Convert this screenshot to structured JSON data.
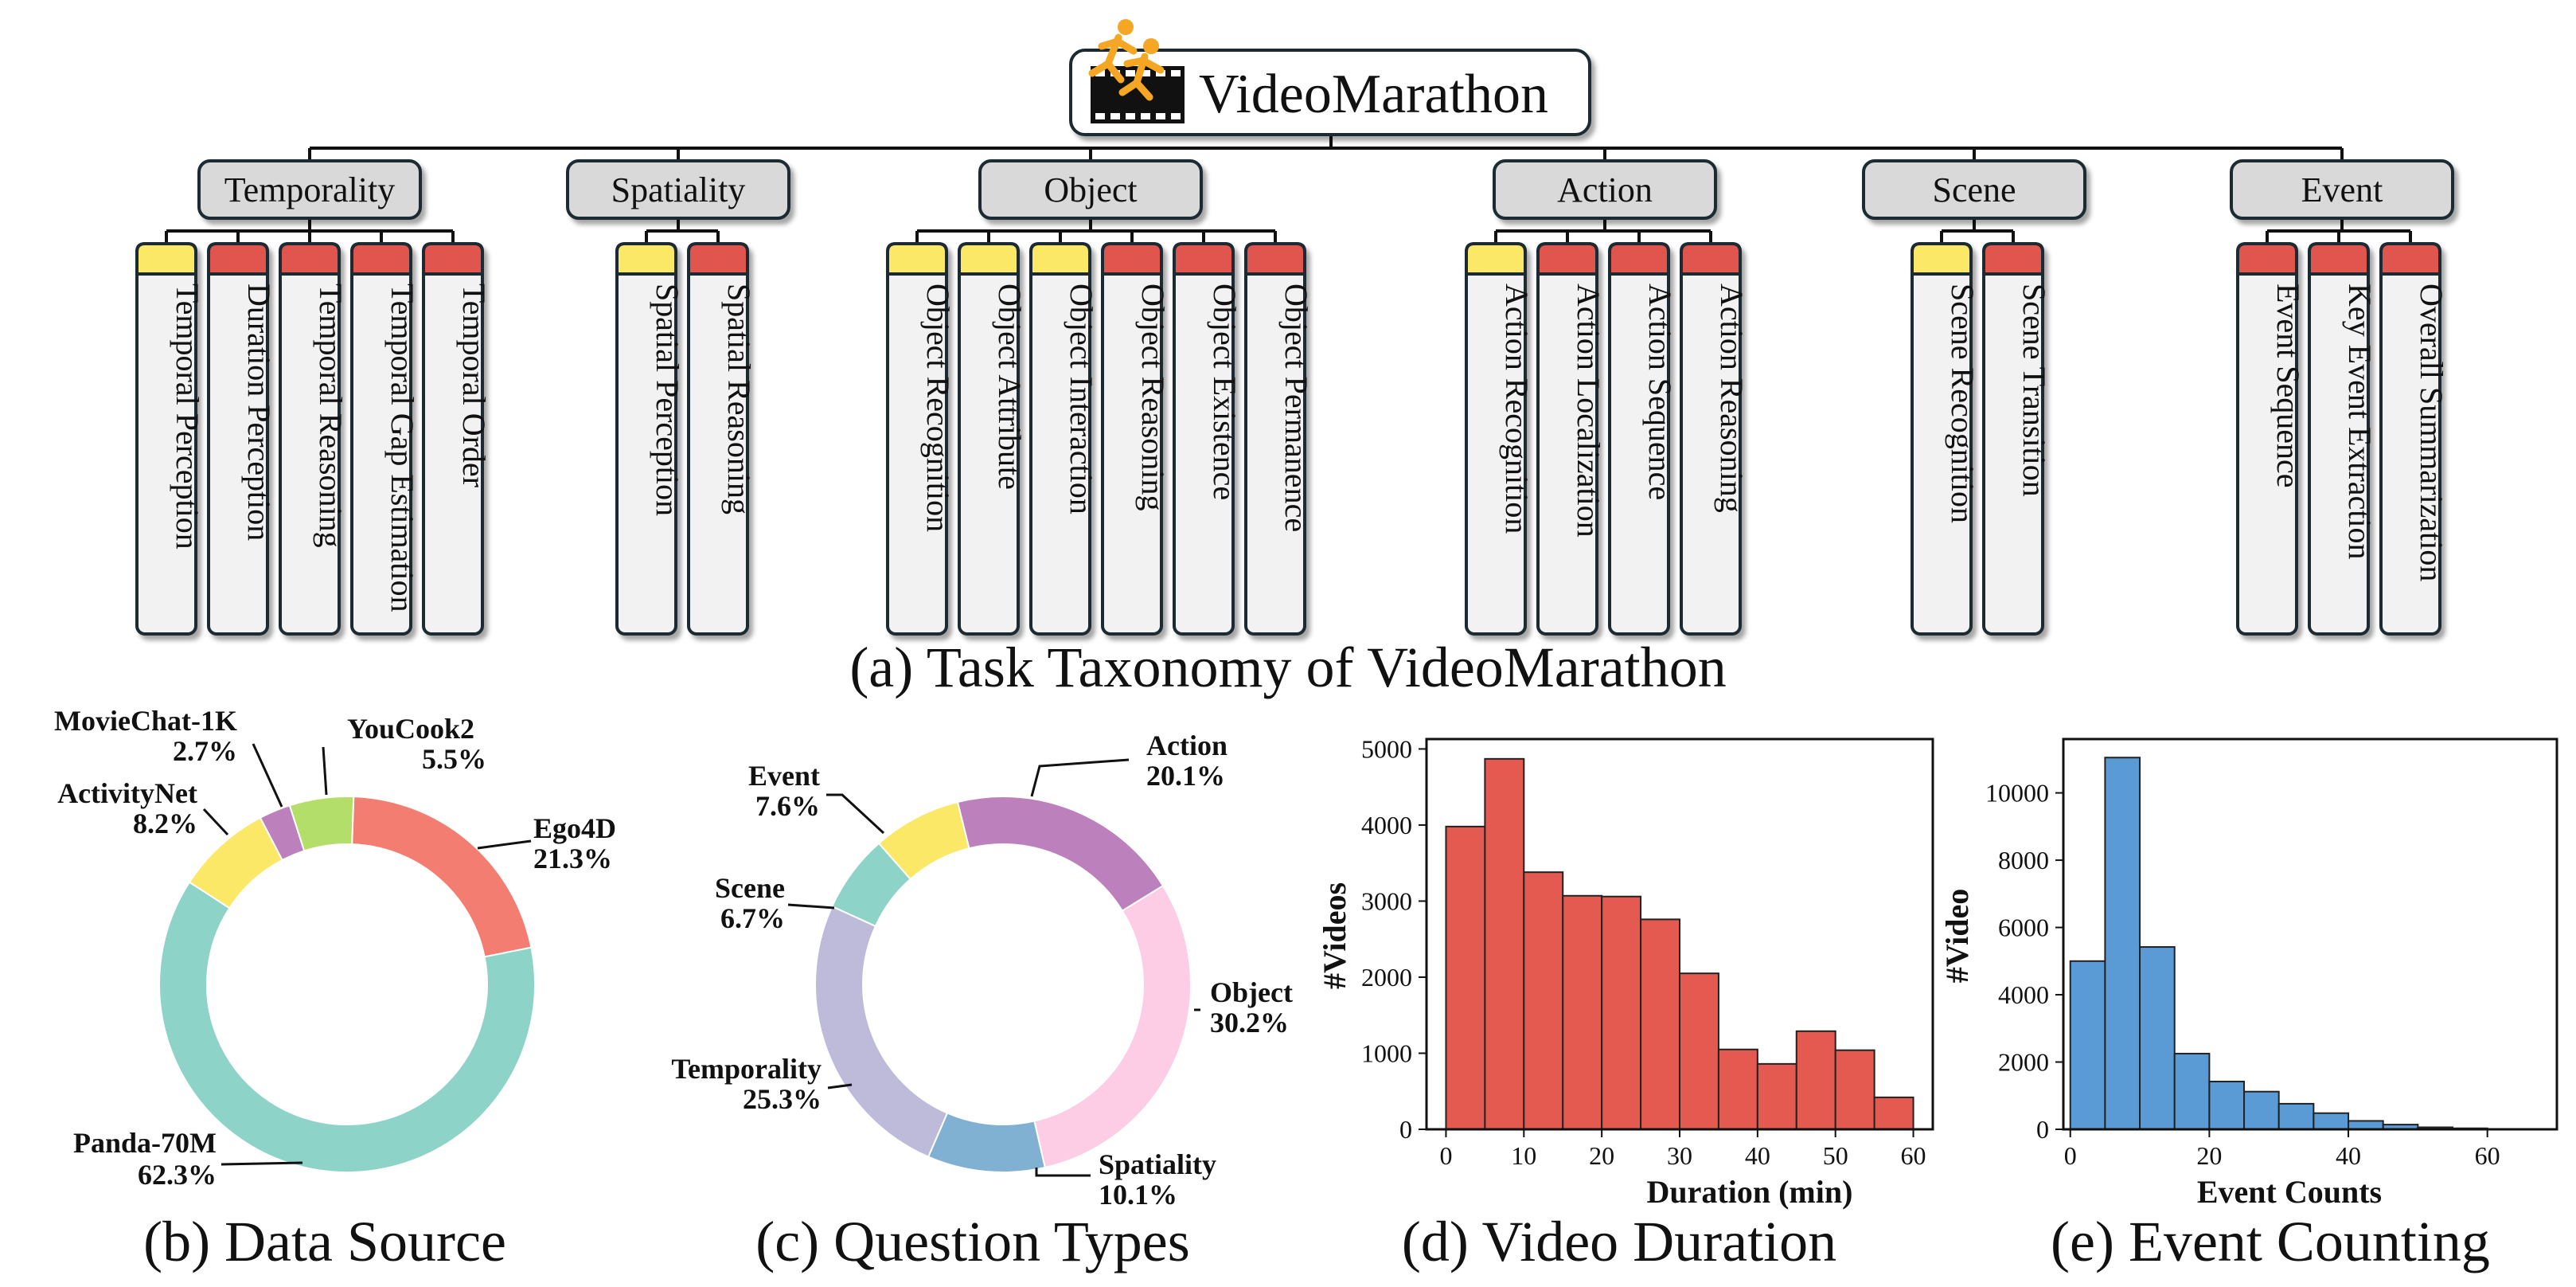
{
  "taxonomy": {
    "root": "VideoMarathon",
    "caption": "(a) Task Taxonomy of VideoMarathon",
    "categories": [
      {
        "name": "Temporality",
        "tasks": [
          {
            "label": "Temporal Perception",
            "level": "yellow"
          },
          {
            "label": "Duration Perception",
            "level": "red"
          },
          {
            "label": "Temporal Reasoning",
            "level": "red"
          },
          {
            "label": "Temporal Gap Estimation",
            "level": "red"
          },
          {
            "label": "Temporal Order",
            "level": "red"
          }
        ]
      },
      {
        "name": "Spatiality",
        "tasks": [
          {
            "label": "Spatial Perception",
            "level": "yellow"
          },
          {
            "label": "Spatial Reasoning",
            "level": "red"
          }
        ]
      },
      {
        "name": "Object",
        "tasks": [
          {
            "label": "Object Recognition",
            "level": "yellow"
          },
          {
            "label": "Object Attribute",
            "level": "yellow"
          },
          {
            "label": "Object Interaction",
            "level": "yellow"
          },
          {
            "label": "Object Reasoning",
            "level": "red"
          },
          {
            "label": "Object Existence",
            "level": "red"
          },
          {
            "label": "Object Permanence",
            "level": "red"
          }
        ]
      },
      {
        "name": "Action",
        "tasks": [
          {
            "label": "Action Recognition",
            "level": "yellow"
          },
          {
            "label": "Action Localization",
            "level": "red"
          },
          {
            "label": "Action Sequence",
            "level": "red"
          },
          {
            "label": "Action Reasoning",
            "level": "red"
          }
        ]
      },
      {
        "name": "Scene",
        "tasks": [
          {
            "label": "Scene Recognition",
            "level": "yellow"
          },
          {
            "label": "Scene Transition",
            "level": "red"
          }
        ]
      },
      {
        "name": "Event",
        "tasks": [
          {
            "label": "Event Sequence",
            "level": "red"
          },
          {
            "label": "Key Event Extraction",
            "level": "red"
          },
          {
            "label": "Overall Summarization",
            "level": "red"
          }
        ]
      }
    ]
  },
  "chart_data": [
    {
      "type": "pie",
      "caption": "(b) Data Source",
      "donut": true,
      "slices": [
        {
          "name": "Ego4D",
          "value": 21.3,
          "label": "21.3%",
          "color": "#f47d72"
        },
        {
          "name": "Panda-70M",
          "value": 62.3,
          "label": "62.3%",
          "color": "#8dd3c7"
        },
        {
          "name": "ActivityNet",
          "value": 8.2,
          "label": "8.2%",
          "color": "#fbe867"
        },
        {
          "name": "MovieChat-1K",
          "value": 2.7,
          "label": "2.7%",
          "color": "#bc80bd"
        },
        {
          "name": "YouCook2",
          "value": 5.5,
          "label": "5.5%",
          "color": "#b3de69"
        }
      ]
    },
    {
      "type": "pie",
      "caption": "(c) Question Types",
      "donut": true,
      "slices": [
        {
          "name": "Action",
          "value": 20.1,
          "label": "20.1%",
          "color": "#bc80bd"
        },
        {
          "name": "Object",
          "value": 30.2,
          "label": "30.2%",
          "color": "#fccde5"
        },
        {
          "name": "Spatiality",
          "value": 10.1,
          "label": "10.1%",
          "color": "#80b1d3"
        },
        {
          "name": "Temporality",
          "value": 25.3,
          "label": "25.3%",
          "color": "#bebada"
        },
        {
          "name": "Scene",
          "value": 6.7,
          "label": "6.7%",
          "color": "#8dd3c7"
        },
        {
          "name": "Event",
          "value": 7.6,
          "label": "7.6%",
          "color": "#fbe867"
        }
      ]
    },
    {
      "type": "bar",
      "subtype": "histogram",
      "caption": "(d) Video Duration",
      "xlabel": "Duration (min)",
      "ylabel": "#Videos",
      "xlim": [
        -2.5,
        62.5
      ],
      "ylim": [
        0,
        5130
      ],
      "xticks": [
        0,
        10,
        20,
        30,
        40,
        50,
        60
      ],
      "yticks": [
        0,
        1000,
        2000,
        3000,
        4000,
        5000
      ],
      "bin_edges": [
        0,
        5,
        10,
        15,
        20,
        25,
        30,
        35,
        40,
        45,
        50,
        55,
        60
      ],
      "values": [
        3980,
        4870,
        3380,
        3070,
        3060,
        2760,
        2050,
        1050,
        860,
        1290,
        1040,
        420
      ],
      "color": "#e45a51"
    },
    {
      "type": "bar",
      "subtype": "histogram",
      "caption": "(e) Event Counting",
      "xlabel": "Event Counts",
      "ylabel": "#Video",
      "xlim": [
        -1,
        70
      ],
      "ylim": [
        0,
        11600
      ],
      "xticks": [
        0,
        20,
        40,
        60
      ],
      "yticks": [
        0,
        2000,
        4000,
        6000,
        8000,
        10000
      ],
      "bin_edges": [
        0,
        5,
        10,
        15,
        20,
        25,
        30,
        35,
        40,
        45,
        50,
        55,
        60,
        65
      ],
      "values": [
        5000,
        11050,
        5420,
        2250,
        1420,
        1120,
        760,
        480,
        250,
        140,
        60,
        30,
        10
      ],
      "color": "#5b9bd5"
    }
  ]
}
